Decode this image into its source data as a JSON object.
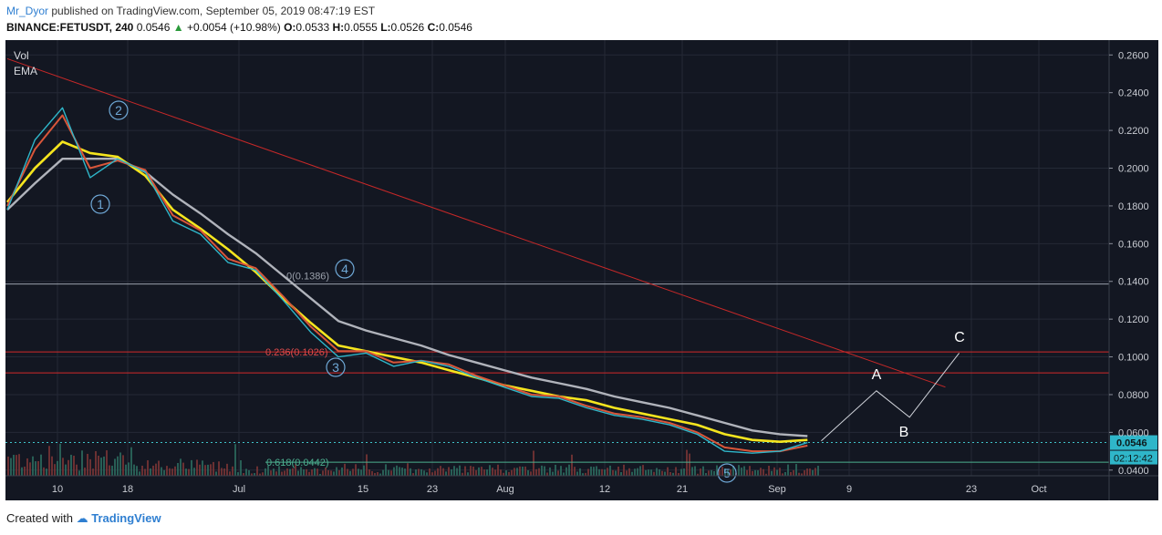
{
  "header": {
    "author": "Mr_Dyor",
    "published": "published on TradingView.com, September 05, 2019 08:47:19 EST",
    "symbol": "BINANCE:FETUSDT, 240",
    "last": "0.0546",
    "change": "+0.0054 (+10.98%)",
    "o_label": "O:",
    "o": "0.0533",
    "h_label": "H:",
    "h": "0.0555",
    "l_label": "L:",
    "l": "0.0526",
    "c_label": "C:",
    "c": "0.0546"
  },
  "indicators": {
    "vol": "Vol",
    "ema": "EMA"
  },
  "footer": {
    "created": "Created with",
    "brand": "TradingView"
  },
  "chart_data": {
    "type": "line",
    "y_ticks": [
      "0.2600",
      "0.2400",
      "0.2200",
      "0.2000",
      "0.1800",
      "0.1600",
      "0.1400",
      "0.1200",
      "0.1000",
      "0.0800",
      "0.0600",
      "0.0400"
    ],
    "x_ticks": [
      "10",
      "18",
      "Jul",
      "15",
      "23",
      "Aug",
      "12",
      "21",
      "Sep",
      "9",
      "23",
      "Oct"
    ],
    "ylim": [
      0.037,
      0.264
    ],
    "last_price_label": "0.0546",
    "countdown_label": "02:12:42",
    "fib_labels": [
      "0(0.1386)",
      "0.236(0.1026)",
      "0.618(0.0442)"
    ],
    "horizontal_levels": [
      {
        "price": 0.1386,
        "color": "#9aa0ab"
      },
      {
        "price": 0.1026,
        "color": "#d12a2a"
      },
      {
        "price": 0.0915,
        "color": "#d12a2a"
      },
      {
        "price": 0.0442,
        "color": "#4caf8f"
      }
    ],
    "trendline": {
      "from": [
        0,
        0.258
      ],
      "to": [
        34,
        0.084
      ],
      "color": "#c62828"
    },
    "wave_labels_circled": [
      "1",
      "2",
      "3",
      "4",
      "5"
    ],
    "wave_labels_plain": [
      "A",
      "B",
      "C"
    ],
    "projection": {
      "x": [
        29.5,
        31.5,
        32.7,
        34.5
      ],
      "y": [
        0.0555,
        0.082,
        0.068,
        0.102
      ]
    },
    "series": [
      {
        "name": "price",
        "color": "#2fb6c9",
        "x": [
          0,
          1,
          2,
          3,
          4,
          5,
          6,
          7,
          8,
          9,
          10,
          11,
          12,
          13,
          14,
          15,
          16,
          17,
          18,
          19,
          20,
          21,
          22,
          23,
          24,
          25,
          26,
          27,
          28,
          29
        ],
        "y": [
          0.178,
          0.215,
          0.232,
          0.195,
          0.205,
          0.198,
          0.172,
          0.165,
          0.15,
          0.146,
          0.13,
          0.113,
          0.1,
          0.102,
          0.095,
          0.098,
          0.095,
          0.089,
          0.084,
          0.079,
          0.078,
          0.073,
          0.069,
          0.067,
          0.064,
          0.059,
          0.05,
          0.049,
          0.05,
          0.0546
        ]
      },
      {
        "name": "ema_fast",
        "color": "#d8563a",
        "x": [
          0,
          1,
          2,
          3,
          4,
          5,
          6,
          7,
          8,
          9,
          10,
          11,
          12,
          13,
          14,
          15,
          16,
          17,
          18,
          19,
          20,
          21,
          22,
          23,
          24,
          25,
          26,
          27,
          28,
          29
        ],
        "y": [
          0.18,
          0.21,
          0.228,
          0.2,
          0.204,
          0.199,
          0.175,
          0.167,
          0.152,
          0.147,
          0.132,
          0.116,
          0.103,
          0.103,
          0.097,
          0.098,
          0.096,
          0.09,
          0.085,
          0.08,
          0.079,
          0.074,
          0.07,
          0.068,
          0.065,
          0.06,
          0.052,
          0.05,
          0.05,
          0.053
        ]
      },
      {
        "name": "ema_mid",
        "color": "#f5e51e",
        "x": [
          0,
          1,
          2,
          3,
          4,
          5,
          6,
          7,
          8,
          9,
          10,
          11,
          12,
          13,
          14,
          15,
          16,
          17,
          18,
          19,
          20,
          21,
          22,
          23,
          24,
          25,
          26,
          27,
          28,
          29
        ],
        "y": [
          0.182,
          0.2,
          0.214,
          0.208,
          0.206,
          0.196,
          0.178,
          0.168,
          0.157,
          0.145,
          0.131,
          0.118,
          0.106,
          0.103,
          0.1,
          0.097,
          0.093,
          0.089,
          0.085,
          0.082,
          0.079,
          0.077,
          0.073,
          0.07,
          0.067,
          0.064,
          0.059,
          0.056,
          0.055,
          0.056
        ]
      },
      {
        "name": "ema_slow",
        "color": "#b0b3bb",
        "x": [
          0,
          1,
          2,
          3,
          4,
          5,
          6,
          7,
          8,
          9,
          10,
          11,
          12,
          13,
          14,
          15,
          16,
          17,
          18,
          19,
          20,
          21,
          22,
          23,
          24,
          25,
          26,
          27,
          28,
          29
        ],
        "y": [
          0.178,
          0.192,
          0.205,
          0.205,
          0.205,
          0.198,
          0.186,
          0.176,
          0.165,
          0.155,
          0.143,
          0.131,
          0.119,
          0.114,
          0.11,
          0.106,
          0.101,
          0.097,
          0.093,
          0.089,
          0.086,
          0.083,
          0.079,
          0.076,
          0.073,
          0.069,
          0.065,
          0.061,
          0.059,
          0.058
        ]
      }
    ]
  }
}
